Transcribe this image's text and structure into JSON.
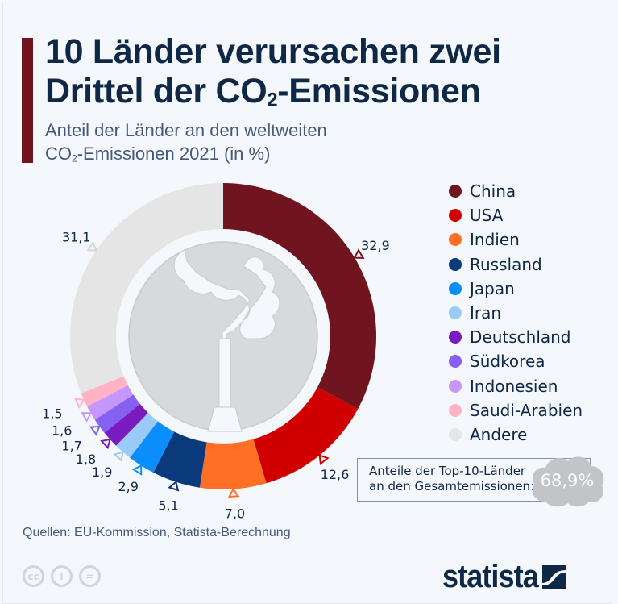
{
  "title_parts": {
    "line1": "10 Länder verursachen zwei",
    "line2_pre": "Drittel der CO",
    "line2_sub": "2",
    "line2_post": "-Emissionen"
  },
  "subtitle_parts": {
    "line1": "Anteil der Länder an den weltweiten",
    "line2_pre": "CO",
    "line2_sub": "2",
    "line2_post": "-Emissionen 2021 (in %)"
  },
  "chart_data": {
    "type": "pie",
    "variant": "donut",
    "title": "10 Länder verursachen zwei Drittel der CO2-Emissionen",
    "subtitle": "Anteil der Länder an den weltweiten CO2-Emissionen 2021 (in %)",
    "unit": "%",
    "legend_position": "right",
    "start": "top, clockwise",
    "categories": [
      "China",
      "USA",
      "Indien",
      "Russland",
      "Japan",
      "Iran",
      "Deutschland",
      "Südkorea",
      "Indonesien",
      "Saudi-Arabien",
      "Andere"
    ],
    "values": [
      32.9,
      12.6,
      7.0,
      5.1,
      2.9,
      1.9,
      1.8,
      1.7,
      1.6,
      1.5,
      31.1
    ],
    "value_labels": [
      "32,9",
      "12,6",
      "7,0",
      "5,1",
      "2,9",
      "1,9",
      "1,8",
      "1,7",
      "1,6",
      "1,5",
      "31,1"
    ],
    "colors": [
      "#701420",
      "#d00000",
      "#ff7024",
      "#0b3a7c",
      "#0a8efc",
      "#9acbf8",
      "#7a1bbf",
      "#8660f0",
      "#c697fb",
      "#ffb3c4",
      "#e5e5e5"
    ]
  },
  "summary": {
    "line1": "Anteile der Top-10-Länder",
    "line2": "an den Gesamtemissionen:",
    "value": "68,9%"
  },
  "source": "Quellen: EU-Kommission, Statista-Berechnung",
  "license_icons": [
    "cc-icon",
    "attribution-icon",
    "no-derivatives-icon"
  ],
  "license_glyphs": [
    "cc",
    "i",
    "="
  ],
  "brand": {
    "name": "statista"
  },
  "colors": {
    "accent": "#701420",
    "text": "#0f2846",
    "muted": "#46597a",
    "background": "#f4f7fb"
  }
}
